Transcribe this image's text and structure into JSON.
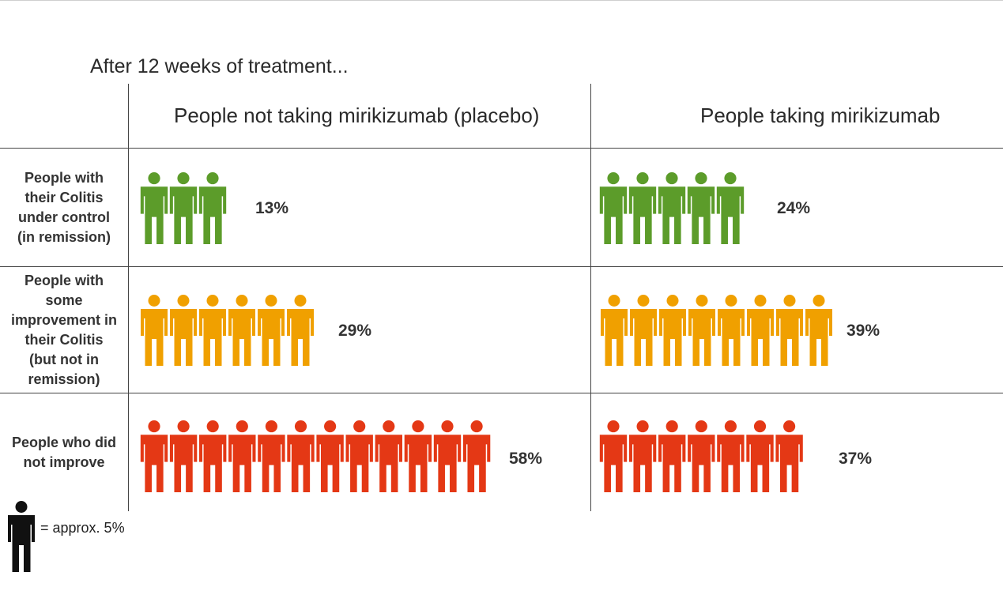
{
  "title": "After 12 weeks of treatment...",
  "columns": [
    {
      "label": "People not taking mirikizumab (placebo)"
    },
    {
      "label": "People taking mirikizumab"
    }
  ],
  "rows": [
    {
      "label_lines": [
        "People with",
        "their Colitis",
        "under control",
        "(in remission)"
      ],
      "color": "#5c9c2a"
    },
    {
      "label_lines": [
        "People with",
        "some",
        "improvement in",
        "their Colitis",
        "(but not in",
        "remission)"
      ],
      "color": "#f0a000"
    },
    {
      "label_lines": [
        "People who did",
        "not improve"
      ],
      "color": "#e43815"
    }
  ],
  "legend": {
    "text": "= approx. 5%",
    "icon": "person-icon",
    "color": "#111111"
  },
  "chart_data": {
    "type": "table",
    "title": "After 12 weeks of treatment...",
    "unit_per_icon": 5,
    "columns": [
      "People not taking mirikizumab (placebo)",
      "People taking mirikizumab"
    ],
    "rows": [
      {
        "name": "People with their Colitis under control (in remission)",
        "values": [
          "13%",
          "24%"
        ],
        "icon_counts": [
          3,
          5
        ],
        "color": "#5c9c2a"
      },
      {
        "name": "People with some improvement in their Colitis (but not in remission)",
        "values": [
          "29%",
          "39%"
        ],
        "icon_counts": [
          6,
          8
        ],
        "color": "#f0a000"
      },
      {
        "name": "People who did not improve",
        "values": [
          "58%",
          "37%"
        ],
        "icon_counts": [
          12,
          7
        ],
        "color": "#e43815"
      }
    ]
  }
}
